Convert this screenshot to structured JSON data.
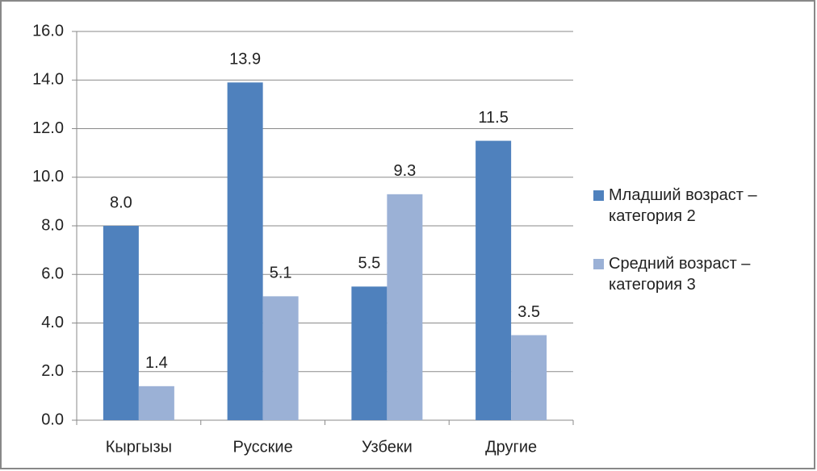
{
  "chart_data": {
    "type": "bar",
    "categories": [
      "Кыргызы",
      "Русские",
      "Узбеки",
      "Другие"
    ],
    "series": [
      {
        "name": "Младший возраст – категория 2",
        "color": "#4f81bd",
        "values": [
          8.0,
          13.9,
          5.5,
          11.5
        ],
        "value_labels": [
          "8.0",
          "13.9",
          "5.5",
          "11.5"
        ]
      },
      {
        "name": "Средний возраст – категория 3",
        "color": "#9bb1d6",
        "values": [
          1.4,
          5.1,
          9.3,
          3.5
        ],
        "value_labels": [
          "1.4",
          "5.1",
          "9.3",
          "3.5"
        ]
      }
    ],
    "ylim": [
      0,
      16
    ],
    "yticks": [
      {
        "value": 0,
        "label": "0.0"
      },
      {
        "value": 2,
        "label": "2.0"
      },
      {
        "value": 4,
        "label": "4.0"
      },
      {
        "value": 6,
        "label": "6.0"
      },
      {
        "value": 8,
        "label": "8.0"
      },
      {
        "value": 10,
        "label": "10.0"
      },
      {
        "value": 12,
        "label": "12.0"
      },
      {
        "value": 14,
        "label": "14.0"
      },
      {
        "value": 16,
        "label": "16.0"
      }
    ],
    "grid": true,
    "legend": "right"
  }
}
